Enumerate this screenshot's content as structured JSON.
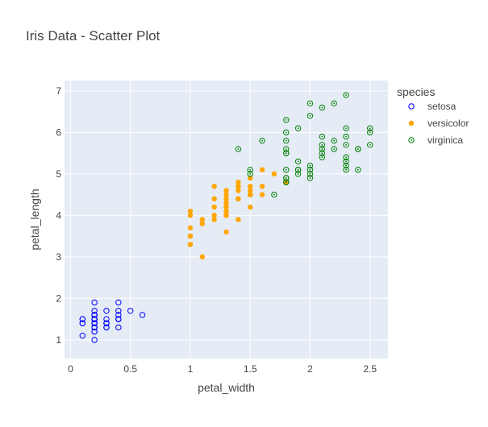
{
  "chart_data": {
    "type": "scatter",
    "title": "Iris Data - Scatter Plot",
    "xlabel": "petal_width",
    "ylabel": "petal_length",
    "xlim": [
      -0.05,
      2.65
    ],
    "ylim": [
      0.55,
      7.25
    ],
    "x_ticks": [
      0,
      0.5,
      1,
      1.5,
      2,
      2.5
    ],
    "x_tick_labels": [
      "0",
      "0.5",
      "1",
      "1.5",
      "2",
      "2.5"
    ],
    "y_ticks": [
      1,
      2,
      3,
      4,
      5,
      6,
      7
    ],
    "y_tick_labels": [
      "1",
      "2",
      "3",
      "4",
      "5",
      "6",
      "7"
    ],
    "grid": true,
    "background_color": "#e5ecf6",
    "legend": {
      "title": "species",
      "placement": "right"
    },
    "series": [
      {
        "name": "setosa",
        "color": "#0000ff",
        "marker": "circle-open",
        "points": [
          [
            0.2,
            1.4
          ],
          [
            0.2,
            1.4
          ],
          [
            0.2,
            1.3
          ],
          [
            0.2,
            1.5
          ],
          [
            0.2,
            1.4
          ],
          [
            0.4,
            1.7
          ],
          [
            0.3,
            1.4
          ],
          [
            0.2,
            1.5
          ],
          [
            0.2,
            1.4
          ],
          [
            0.1,
            1.5
          ],
          [
            0.2,
            1.5
          ],
          [
            0.2,
            1.6
          ],
          [
            0.1,
            1.4
          ],
          [
            0.1,
            1.1
          ],
          [
            0.2,
            1.2
          ],
          [
            0.4,
            1.5
          ],
          [
            0.4,
            1.3
          ],
          [
            0.3,
            1.4
          ],
          [
            0.3,
            1.7
          ],
          [
            0.3,
            1.5
          ],
          [
            0.2,
            1.7
          ],
          [
            0.4,
            1.5
          ],
          [
            0.2,
            1.0
          ],
          [
            0.5,
            1.7
          ],
          [
            0.2,
            1.9
          ],
          [
            0.2,
            1.6
          ],
          [
            0.4,
            1.6
          ],
          [
            0.2,
            1.5
          ],
          [
            0.2,
            1.4
          ],
          [
            0.2,
            1.6
          ],
          [
            0.2,
            1.6
          ],
          [
            0.4,
            1.5
          ],
          [
            0.1,
            1.5
          ],
          [
            0.2,
            1.4
          ],
          [
            0.2,
            1.5
          ],
          [
            0.2,
            1.2
          ],
          [
            0.2,
            1.3
          ],
          [
            0.1,
            1.4
          ],
          [
            0.2,
            1.3
          ],
          [
            0.2,
            1.5
          ],
          [
            0.3,
            1.3
          ],
          [
            0.3,
            1.3
          ],
          [
            0.2,
            1.3
          ],
          [
            0.6,
            1.6
          ],
          [
            0.4,
            1.9
          ],
          [
            0.3,
            1.4
          ],
          [
            0.2,
            1.6
          ],
          [
            0.2,
            1.4
          ],
          [
            0.2,
            1.5
          ],
          [
            0.2,
            1.4
          ]
        ]
      },
      {
        "name": "versicolor",
        "color": "#ffa500",
        "marker": "circle",
        "points": [
          [
            1.4,
            4.7
          ],
          [
            1.5,
            4.5
          ],
          [
            1.5,
            4.9
          ],
          [
            1.3,
            4.0
          ],
          [
            1.5,
            4.6
          ],
          [
            1.3,
            4.5
          ],
          [
            1.6,
            4.7
          ],
          [
            1.0,
            3.3
          ],
          [
            1.3,
            4.6
          ],
          [
            1.4,
            3.9
          ],
          [
            1.0,
            3.5
          ],
          [
            1.5,
            4.2
          ],
          [
            1.0,
            4.0
          ],
          [
            1.4,
            4.7
          ],
          [
            1.3,
            3.6
          ],
          [
            1.4,
            4.4
          ],
          [
            1.5,
            4.5
          ],
          [
            1.0,
            4.1
          ],
          [
            1.5,
            4.5
          ],
          [
            1.1,
            3.9
          ],
          [
            1.8,
            4.8
          ],
          [
            1.3,
            4.0
          ],
          [
            1.5,
            4.9
          ],
          [
            1.2,
            4.7
          ],
          [
            1.3,
            4.3
          ],
          [
            1.4,
            4.4
          ],
          [
            1.4,
            4.8
          ],
          [
            1.7,
            5.0
          ],
          [
            1.5,
            4.5
          ],
          [
            1.0,
            3.5
          ],
          [
            1.1,
            3.8
          ],
          [
            1.0,
            3.7
          ],
          [
            1.2,
            3.9
          ],
          [
            1.6,
            5.1
          ],
          [
            1.5,
            4.5
          ],
          [
            1.6,
            4.5
          ],
          [
            1.5,
            4.7
          ],
          [
            1.3,
            4.4
          ],
          [
            1.3,
            4.1
          ],
          [
            1.3,
            4.0
          ],
          [
            1.2,
            4.4
          ],
          [
            1.4,
            4.6
          ],
          [
            1.2,
            4.0
          ],
          [
            1.0,
            3.3
          ],
          [
            1.3,
            4.2
          ],
          [
            1.2,
            4.2
          ],
          [
            1.3,
            4.2
          ],
          [
            1.3,
            4.3
          ],
          [
            1.1,
            3.0
          ],
          [
            1.3,
            4.1
          ]
        ]
      },
      {
        "name": "virginica",
        "color": "#008000",
        "marker": "circle-open-dot",
        "points": [
          [
            2.5,
            6.0
          ],
          [
            1.9,
            5.1
          ],
          [
            2.1,
            5.9
          ],
          [
            1.8,
            5.6
          ],
          [
            2.2,
            5.8
          ],
          [
            2.1,
            6.6
          ],
          [
            1.7,
            4.5
          ],
          [
            1.8,
            6.3
          ],
          [
            1.8,
            5.8
          ],
          [
            2.5,
            6.1
          ],
          [
            2.0,
            5.1
          ],
          [
            1.9,
            5.3
          ],
          [
            2.1,
            5.5
          ],
          [
            2.0,
            5.0
          ],
          [
            2.4,
            5.1
          ],
          [
            2.3,
            5.3
          ],
          [
            1.8,
            5.5
          ],
          [
            2.2,
            6.7
          ],
          [
            2.3,
            6.9
          ],
          [
            1.5,
            5.0
          ],
          [
            2.3,
            5.7
          ],
          [
            2.0,
            4.9
          ],
          [
            2.0,
            6.7
          ],
          [
            1.8,
            4.9
          ],
          [
            2.1,
            5.7
          ],
          [
            1.8,
            6.0
          ],
          [
            1.8,
            4.8
          ],
          [
            1.8,
            4.9
          ],
          [
            2.1,
            5.6
          ],
          [
            1.6,
            5.8
          ],
          [
            1.9,
            6.1
          ],
          [
            2.0,
            6.4
          ],
          [
            2.2,
            5.6
          ],
          [
            1.5,
            5.1
          ],
          [
            1.4,
            5.6
          ],
          [
            2.3,
            6.1
          ],
          [
            2.4,
            5.6
          ],
          [
            1.8,
            5.5
          ],
          [
            1.8,
            4.8
          ],
          [
            2.1,
            5.4
          ],
          [
            2.4,
            5.6
          ],
          [
            2.3,
            5.1
          ],
          [
            1.9,
            5.1
          ],
          [
            2.3,
            5.9
          ],
          [
            2.5,
            5.7
          ],
          [
            2.3,
            5.2
          ],
          [
            1.9,
            5.0
          ],
          [
            2.0,
            5.2
          ],
          [
            2.3,
            5.4
          ],
          [
            1.8,
            5.1
          ]
        ]
      }
    ]
  }
}
